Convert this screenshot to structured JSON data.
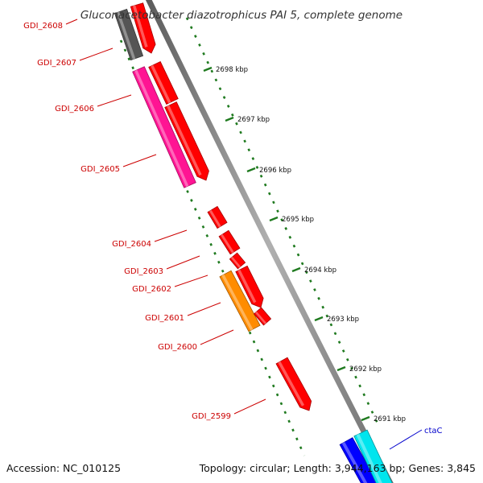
{
  "title": "Gluconacetobacter diazotrophicus PAI 5, complete genome",
  "footer": {
    "accession": "Accession: NC_010125",
    "summary": "Topology: circular; Length: 3,944,163 bp; Genes: 3,845"
  },
  "colors": {
    "backbone": "#808080",
    "gene_label": "#cc0000",
    "named_gene_label": "#0000cc",
    "tick": "#1f7a1f",
    "gene_red": "#ff0000",
    "gene_gray": "#555555",
    "gene_magenta": "#ff1493",
    "gene_orange": "#ff8c00",
    "gene_blue": "#0000ff",
    "gene_cyan": "#00e5ee"
  },
  "ruler": {
    "ticks": [
      "2698 kbp",
      "2697 kbp",
      "2696 kbp",
      "2695 kbp",
      "2694 kbp",
      "2693 kbp",
      "2692 kbp",
      "2691 kbp"
    ]
  },
  "genes": [
    {
      "label": "GDI_2608"
    },
    {
      "label": "GDI_2607"
    },
    {
      "label": "GDI_2606"
    },
    {
      "label": "GDI_2605"
    },
    {
      "label": "GDI_2604"
    },
    {
      "label": "GDI_2603"
    },
    {
      "label": "GDI_2602"
    },
    {
      "label": "GDI_2601"
    },
    {
      "label": "GDI_2600"
    },
    {
      "label": "GDI_2599"
    },
    {
      "label": "ctaC"
    }
  ]
}
